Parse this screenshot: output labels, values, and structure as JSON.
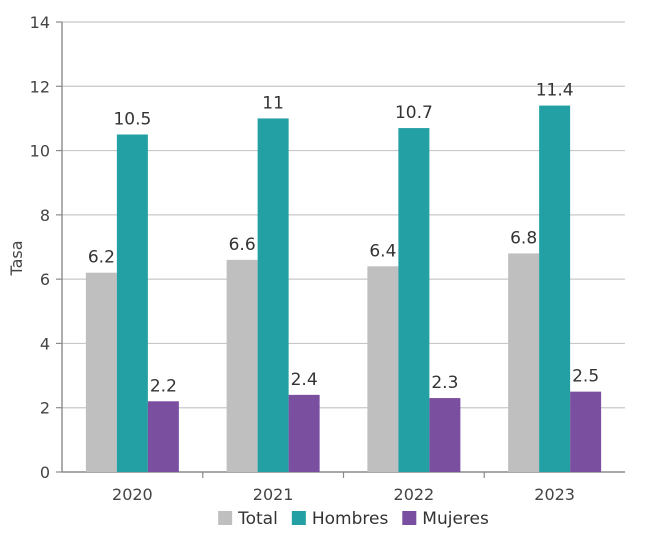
{
  "chart_data": {
    "type": "bar",
    "title": "",
    "xlabel": "",
    "ylabel": "Tasa",
    "ylim": [
      0,
      14
    ],
    "yticks": [
      0,
      2,
      4,
      6,
      8,
      10,
      12,
      14
    ],
    "grid": true,
    "legend_position": "bottom",
    "categories": [
      "2020",
      "2021",
      "2022",
      "2023"
    ],
    "series": [
      {
        "name": "Total",
        "color": "#bfbfbf",
        "values": [
          6.2,
          6.6,
          6.4,
          6.8
        ],
        "labels": [
          "6.2",
          "6.6",
          "6.4",
          "6.8"
        ]
      },
      {
        "name": "Hombres",
        "color": "#22a0a3",
        "values": [
          10.5,
          11,
          10.7,
          11.4
        ],
        "labels": [
          "10.5",
          "11",
          "10.7",
          "11.4"
        ]
      },
      {
        "name": "Mujeres",
        "color": "#7a4fa0",
        "values": [
          2.2,
          2.4,
          2.3,
          2.5
        ],
        "labels": [
          "2.2",
          "2.4",
          "2.3",
          "2.5"
        ]
      }
    ]
  }
}
